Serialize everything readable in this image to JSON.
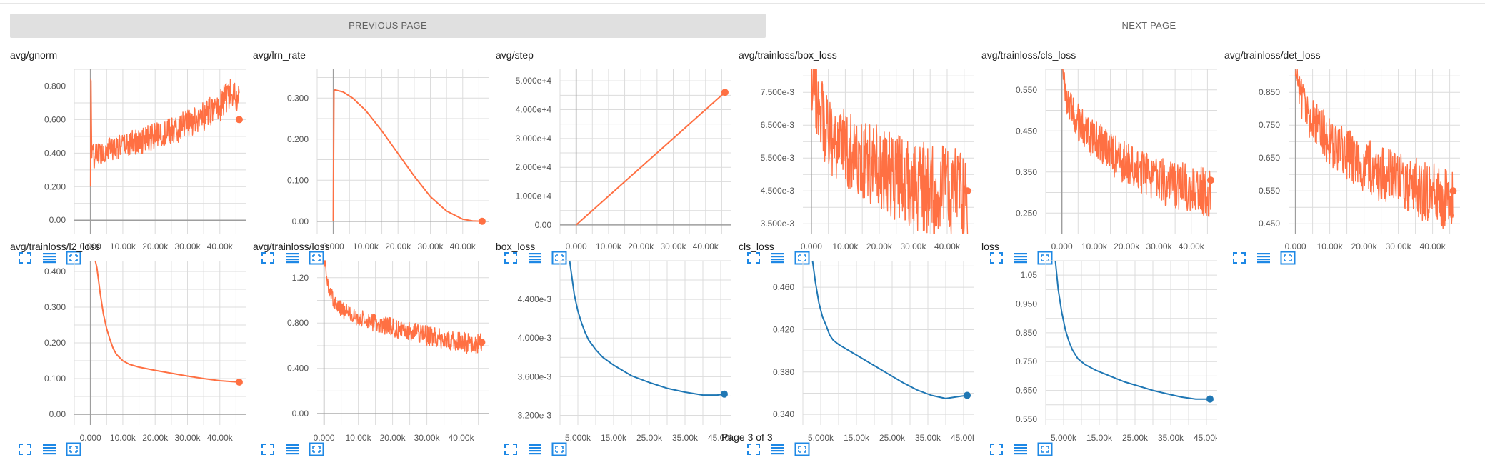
{
  "nav": {
    "prev_label": "PREVIOUS PAGE",
    "next_label": "NEXT PAGE"
  },
  "page_indicator": "Page 3 of 3",
  "colors": {
    "orange": "#ff7043",
    "blue": "#1f77b4",
    "grid": "#dcdcdc",
    "axis": "#9e9e9e"
  },
  "icons": [
    "expand-icon",
    "list-icon",
    "fit-domain-icon"
  ],
  "chart_data": [
    {
      "title": "avg/gnorm",
      "type": "line",
      "color": "#ff7043",
      "xlim": [
        -5000,
        48000
      ],
      "ylim": [
        -0.08,
        0.9
      ],
      "xticks": [
        0,
        10000,
        20000,
        30000,
        40000
      ],
      "xtick_labels": [
        "0.000",
        "10.00k",
        "20.00k",
        "30.00k",
        "40.00k"
      ],
      "yticks": [
        0,
        0.2,
        0.4,
        0.6,
        0.8
      ],
      "ytick_labels": [
        "0.00",
        "0.200",
        "0.400",
        "0.600",
        "0.800"
      ],
      "noise": 0.07,
      "marker_y": 0.6,
      "series_x": [
        0,
        150,
        400,
        1000,
        3000,
        6000,
        10000,
        15000,
        20000,
        25000,
        30000,
        35000,
        40000,
        43000,
        46000
      ],
      "series_y": [
        0.2,
        1.05,
        0.4,
        0.38,
        0.4,
        0.43,
        0.44,
        0.47,
        0.5,
        0.53,
        0.57,
        0.62,
        0.68,
        0.75,
        0.72
      ]
    },
    {
      "title": "avg/lrn_rate",
      "type": "line",
      "color": "#ff7043",
      "xlim": [
        -5000,
        48000
      ],
      "ylim": [
        -0.03,
        0.37
      ],
      "xticks": [
        0,
        10000,
        20000,
        30000,
        40000
      ],
      "xtick_labels": [
        "0.000",
        "10.00k",
        "20.00k",
        "30.00k",
        "40.00k"
      ],
      "yticks": [
        0,
        0.1,
        0.2,
        0.3
      ],
      "ytick_labels": [
        "0.00",
        "0.100",
        "0.200",
        "0.300"
      ],
      "noise": 0,
      "marker_y": 0.0,
      "series_x": [
        0,
        200,
        500,
        3000,
        6000,
        10000,
        15000,
        20000,
        25000,
        30000,
        35000,
        40000,
        43000,
        46000
      ],
      "series_y": [
        0,
        0.318,
        0.32,
        0.315,
        0.3,
        0.27,
        0.22,
        0.165,
        0.11,
        0.06,
        0.025,
        0.005,
        0.001,
        0.0
      ]
    },
    {
      "title": "avg/step",
      "type": "line",
      "color": "#ff7043",
      "xlim": [
        -5000,
        48000
      ],
      "ylim": [
        -3000,
        54000
      ],
      "xticks": [
        0,
        10000,
        20000,
        30000,
        40000
      ],
      "xtick_labels": [
        "0.000",
        "10.00k",
        "20.00k",
        "30.00k",
        "40.00k"
      ],
      "yticks": [
        0,
        10000,
        20000,
        30000,
        40000,
        50000
      ],
      "ytick_labels": [
        "0.00",
        "1.000e+4",
        "2.000e+4",
        "3.000e+4",
        "4.000e+4",
        "5.000e+4"
      ],
      "noise": 0,
      "marker_y": 46000,
      "series_x": [
        0,
        46000
      ],
      "series_y": [
        0,
        46000
      ]
    },
    {
      "title": "avg/trainloss/box_loss",
      "type": "line",
      "color": "#ff7043",
      "xlim": [
        -2500,
        48000
      ],
      "ylim": [
        0.0032,
        0.0082
      ],
      "xticks": [
        0,
        10000,
        20000,
        30000,
        40000
      ],
      "xtick_labels": [
        "0.000",
        "10.00k",
        "20.00k",
        "30.00k",
        "40.00k"
      ],
      "yticks": [
        0.0035,
        0.0045,
        0.0055,
        0.0065,
        0.0075
      ],
      "ytick_labels": [
        "3.500e-3",
        "4.500e-3",
        "5.500e-3",
        "6.500e-3",
        "7.500e-3"
      ],
      "noise": 0.0011,
      "marker_y": 0.0045,
      "series_x": [
        0,
        2000,
        5000,
        10000,
        15000,
        20000,
        25000,
        30000,
        35000,
        40000,
        45000,
        46000
      ],
      "series_y": [
        0.0078,
        0.0071,
        0.0062,
        0.0058,
        0.0055,
        0.0052,
        0.0049,
        0.0047,
        0.0045,
        0.0044,
        0.0043,
        0.0043
      ]
    },
    {
      "title": "avg/trainloss/cls_loss",
      "type": "line",
      "color": "#ff7043",
      "xlim": [
        -5000,
        48000
      ],
      "ylim": [
        0.2,
        0.6
      ],
      "xticks": [
        0,
        10000,
        20000,
        30000,
        40000
      ],
      "xtick_labels": [
        "0.000",
        "10.00k",
        "20.00k",
        "30.00k",
        "40.00k"
      ],
      "yticks": [
        0.25,
        0.35,
        0.45,
        0.55
      ],
      "ytick_labels": [
        "0.250",
        "0.350",
        "0.450",
        "0.550"
      ],
      "noise": 0.045,
      "marker_y": 0.33,
      "series_x": [
        0,
        1000,
        4000,
        8000,
        12000,
        16000,
        20000,
        25000,
        30000,
        35000,
        40000,
        46000
      ],
      "series_y": [
        0.6,
        0.54,
        0.48,
        0.44,
        0.42,
        0.39,
        0.37,
        0.35,
        0.33,
        0.32,
        0.31,
        0.3
      ]
    },
    {
      "title": "avg/trainloss/det_loss",
      "type": "line",
      "color": "#ff7043",
      "xlim": [
        -2000,
        48000
      ],
      "ylim": [
        0.42,
        0.92
      ],
      "xticks": [
        0,
        10000,
        20000,
        30000,
        40000
      ],
      "xtick_labels": [
        "0.000",
        "10.00k",
        "20.00k",
        "30.00k",
        "40.00k"
      ],
      "yticks": [
        0.45,
        0.55,
        0.65,
        0.75,
        0.85
      ],
      "ytick_labels": [
        "0.450",
        "0.550",
        "0.650",
        "0.750",
        "0.850"
      ],
      "noise": 0.07,
      "marker_y": 0.55,
      "series_x": [
        0,
        2000,
        5000,
        10000,
        15000,
        20000,
        25000,
        30000,
        35000,
        40000,
        46000
      ],
      "series_y": [
        0.9,
        0.83,
        0.76,
        0.7,
        0.66,
        0.63,
        0.6,
        0.58,
        0.56,
        0.54,
        0.52
      ]
    },
    {
      "title": "avg/trainloss/l2_loss",
      "type": "line",
      "color": "#ff7043",
      "xlim": [
        -5000,
        48000
      ],
      "ylim": [
        -0.03,
        0.43
      ],
      "xticks": [
        0,
        10000,
        20000,
        30000,
        40000
      ],
      "xtick_labels": [
        "0.000",
        "10.00k",
        "20.00k",
        "30.00k",
        "40.00k"
      ],
      "yticks": [
        0,
        0.1,
        0.2,
        0.3,
        0.4
      ],
      "ytick_labels": [
        "0.00",
        "0.100",
        "0.200",
        "0.300",
        "0.400"
      ],
      "noise": 0,
      "marker_y": 0.09,
      "series_x": [
        1500,
        2000,
        3000,
        4000,
        5000,
        6000,
        7000,
        8000,
        10000,
        12000,
        15000,
        20000,
        25000,
        30000,
        35000,
        40000,
        46000
      ],
      "series_y": [
        0.46,
        0.41,
        0.34,
        0.28,
        0.24,
        0.21,
        0.185,
        0.168,
        0.15,
        0.14,
        0.132,
        0.123,
        0.115,
        0.107,
        0.1,
        0.094,
        0.09
      ]
    },
    {
      "title": "avg/trainloss/loss",
      "type": "line",
      "color": "#ff7043",
      "xlim": [
        -2000,
        48000
      ],
      "ylim": [
        -0.1,
        1.35
      ],
      "xticks": [
        0,
        10000,
        20000,
        30000,
        40000
      ],
      "xtick_labels": [
        "0.000",
        "10.00k",
        "20.00k",
        "30.00k",
        "40.00k"
      ],
      "yticks": [
        0,
        0.4,
        0.8,
        1.2
      ],
      "ytick_labels": [
        "0.00",
        "0.400",
        "0.800",
        "1.20"
      ],
      "noise": 0.07,
      "marker_y": 0.63,
      "series_x": [
        0,
        1000,
        3000,
        6000,
        10000,
        15000,
        20000,
        25000,
        30000,
        35000,
        40000,
        46000
      ],
      "series_y": [
        1.38,
        1.15,
        0.98,
        0.9,
        0.85,
        0.8,
        0.76,
        0.72,
        0.69,
        0.66,
        0.63,
        0.61
      ]
    },
    {
      "title": "box_loss",
      "type": "line",
      "color": "#1f77b4",
      "xlim": [
        0,
        48000
      ],
      "ylim": [
        0.0031,
        0.0048
      ],
      "xticks": [
        5000,
        15000,
        25000,
        35000,
        45000
      ],
      "xtick_labels": [
        "5.000k",
        "15.00k",
        "25.00k",
        "35.00k",
        "45.00k"
      ],
      "yticks": [
        0.0032,
        0.0036,
        0.004,
        0.0044
      ],
      "ytick_labels": [
        "3.200e-3",
        "3.600e-3",
        "4.000e-3",
        "4.400e-3"
      ],
      "noise": 0,
      "marker_y": 0.00342,
      "series_x": [
        2700,
        4000,
        5000,
        6000,
        7000,
        8000,
        10000,
        12000,
        15000,
        20000,
        25000,
        30000,
        35000,
        40000,
        44000,
        46000
      ],
      "series_y": [
        0.0048,
        0.00445,
        0.00428,
        0.00416,
        0.00406,
        0.00398,
        0.00388,
        0.0038,
        0.00372,
        0.00361,
        0.00354,
        0.00348,
        0.00344,
        0.00341,
        0.00341,
        0.00342
      ]
    },
    {
      "title": "cls_loss",
      "type": "line",
      "color": "#1f77b4",
      "xlim": [
        0,
        48000
      ],
      "ylim": [
        0.33,
        0.485
      ],
      "xticks": [
        5000,
        15000,
        25000,
        35000,
        45000
      ],
      "xtick_labels": [
        "5.000k",
        "15.00k",
        "25.00k",
        "35.00k",
        "45.00k"
      ],
      "yticks": [
        0.34,
        0.38,
        0.42,
        0.46
      ],
      "ytick_labels": [
        "0.340",
        "0.380",
        "0.420",
        "0.460"
      ],
      "noise": 0,
      "marker_y": 0.358,
      "series_x": [
        2700,
        3500,
        4500,
        5500,
        6500,
        7500,
        8500,
        10000,
        13000,
        16000,
        20000,
        24000,
        28000,
        32000,
        36000,
        40000,
        44000,
        46000
      ],
      "series_y": [
        0.485,
        0.465,
        0.445,
        0.432,
        0.424,
        0.415,
        0.41,
        0.406,
        0.4,
        0.394,
        0.386,
        0.378,
        0.37,
        0.363,
        0.358,
        0.355,
        0.357,
        0.358
      ]
    },
    {
      "title": "loss",
      "type": "line",
      "color": "#1f77b4",
      "xlim": [
        0,
        48000
      ],
      "ylim": [
        0.53,
        1.1
      ],
      "xticks": [
        5000,
        15000,
        25000,
        35000,
        45000
      ],
      "xtick_labels": [
        "5.000k",
        "15.00k",
        "25.00k",
        "35.00k",
        "45.00k"
      ],
      "yticks": [
        0.55,
        0.65,
        0.75,
        0.85,
        0.95,
        1.05
      ],
      "ytick_labels": [
        "0.550",
        "0.650",
        "0.750",
        "0.850",
        "0.950",
        "1.05"
      ],
      "noise": 0,
      "marker_y": 0.62,
      "series_x": [
        2700,
        3500,
        4500,
        5500,
        6500,
        7500,
        9000,
        11000,
        14000,
        18000,
        22000,
        26000,
        30000,
        34000,
        38000,
        42000,
        46000
      ],
      "series_y": [
        1.1,
        1.0,
        0.92,
        0.86,
        0.82,
        0.79,
        0.76,
        0.74,
        0.72,
        0.7,
        0.68,
        0.665,
        0.65,
        0.638,
        0.627,
        0.62,
        0.62
      ]
    }
  ]
}
